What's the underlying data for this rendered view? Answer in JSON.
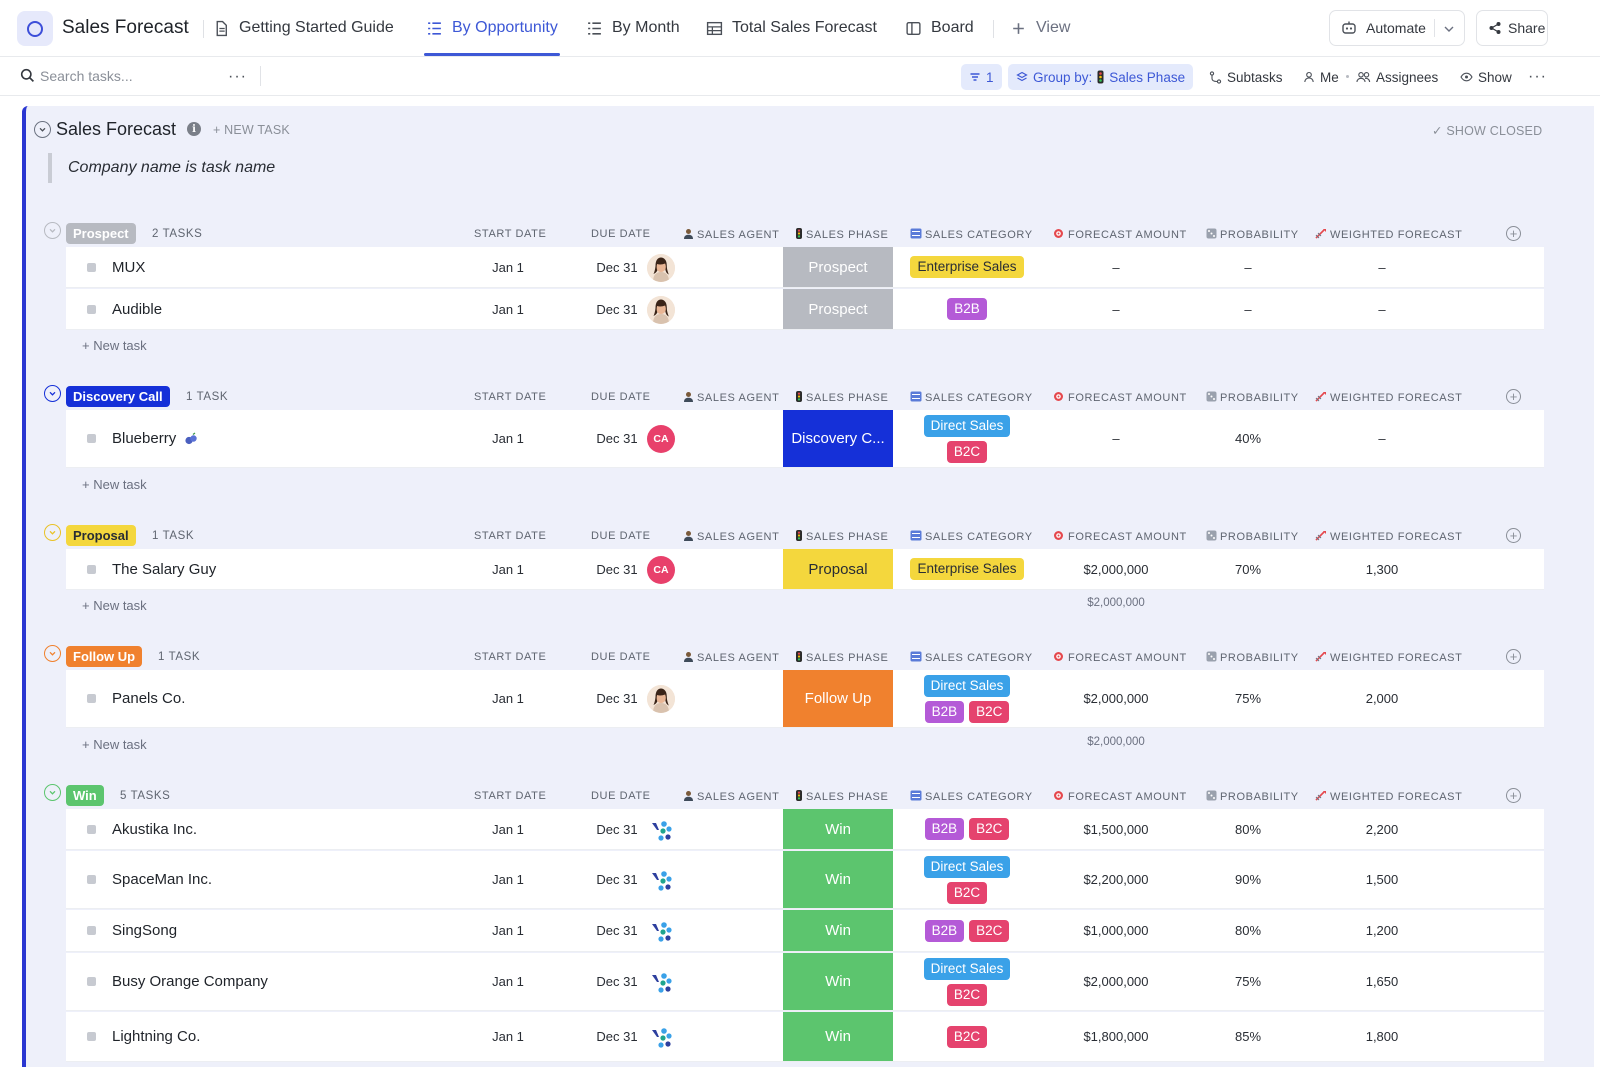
{
  "header": {
    "title": "Sales Forecast",
    "tabs": [
      {
        "label": "Getting Started Guide",
        "icon": "document-icon"
      },
      {
        "label": "By Opportunity",
        "icon": "list-icon"
      },
      {
        "label": "By Month",
        "icon": "list-icon"
      },
      {
        "label": "Total Sales Forecast",
        "icon": "table-icon"
      },
      {
        "label": "Board",
        "icon": "board-icon"
      },
      {
        "label": "View",
        "icon": "plus-icon"
      }
    ],
    "automate": "Automate",
    "share": "Share"
  },
  "toolbar": {
    "search_placeholder": "Search tasks...",
    "filter_count": "1",
    "group_by_label": "Group by:",
    "group_by_value": "Sales Phase",
    "subtasks": "Subtasks",
    "me": "Me",
    "assignees": "Assignees",
    "show": "Show"
  },
  "list": {
    "title": "Sales Forecast",
    "new_task": "+ NEW TASK",
    "show_closed": "SHOW CLOSED",
    "description": "Company name is task name"
  },
  "columns": {
    "start": "START DATE",
    "due": "DUE DATE",
    "agent": "SALES AGENT",
    "phase": "SALES PHASE",
    "category": "SALES CATEGORY",
    "forecast": "FORECAST AMOUNT",
    "probability": "PROBABILITY",
    "weighted": "WEIGHTED FORECAST"
  },
  "new_task_row": "+ New task",
  "colors": {
    "accent": "#3d58d6",
    "prospect": "#b7bac1",
    "discovery": "#1530d8",
    "proposal": "#f4d73d",
    "follow_up": "#f0812e",
    "win": "#5cc56e"
  },
  "groups": [
    {
      "name": "Prospect",
      "count": "2 TASKS",
      "summary": "",
      "tasks": [
        {
          "name": "MUX",
          "start": "Jan 1",
          "due": "Dec 31",
          "agent": "photo",
          "phase": "Prospect",
          "categories": [
            [
              "Enterprise Sales"
            ]
          ],
          "forecast": "–",
          "probability": "–",
          "weighted": "–"
        },
        {
          "name": "Audible",
          "start": "Jan 1",
          "due": "Dec 31",
          "agent": "photo",
          "phase": "Prospect",
          "categories": [
            [
              "B2B"
            ]
          ],
          "forecast": "–",
          "probability": "–",
          "weighted": "–"
        }
      ]
    },
    {
      "name": "Discovery Call",
      "count": "1 TASK",
      "summary": "",
      "tasks": [
        {
          "name": "Blueberry",
          "start": "Jan 1",
          "due": "Dec 31",
          "agent": "CA",
          "phase": "Discovery C...",
          "categories": [
            [
              "Direct Sales"
            ],
            [
              "B2C"
            ]
          ],
          "forecast": "–",
          "probability": "40%",
          "weighted": "–"
        }
      ]
    },
    {
      "name": "Proposal",
      "count": "1 TASK",
      "summary": "$2,000,000",
      "tasks": [
        {
          "name": "The Salary Guy",
          "start": "Jan 1",
          "due": "Dec 31",
          "agent": "CA",
          "phase": "Proposal",
          "categories": [
            [
              "Enterprise Sales"
            ]
          ],
          "forecast": "$2,000,000",
          "probability": "70%",
          "weighted": "1,300"
        }
      ]
    },
    {
      "name": "Follow Up",
      "count": "1 TASK",
      "summary": "$2,000,000",
      "tasks": [
        {
          "name": "Panels Co.",
          "start": "Jan 1",
          "due": "Dec 31",
          "agent": "photo",
          "phase": "Follow Up",
          "categories": [
            [
              "Direct Sales"
            ],
            [
              "B2B",
              "B2C"
            ]
          ],
          "forecast": "$2,000,000",
          "probability": "75%",
          "weighted": "2,000"
        }
      ]
    },
    {
      "name": "Win",
      "count": "5 TASKS",
      "summary": "",
      "tasks": [
        {
          "name": "Akustika Inc.",
          "start": "Jan 1",
          "due": "Dec 31",
          "agent": "logo",
          "phase": "Win",
          "categories": [
            [
              "B2B",
              "B2C"
            ]
          ],
          "forecast": "$1,500,000",
          "probability": "80%",
          "weighted": "2,200"
        },
        {
          "name": "SpaceMan Inc.",
          "start": "Jan 1",
          "due": "Dec 31",
          "agent": "logo",
          "phase": "Win",
          "categories": [
            [
              "Direct Sales"
            ],
            [
              "B2C"
            ]
          ],
          "forecast": "$2,200,000",
          "probability": "90%",
          "weighted": "1,500"
        },
        {
          "name": "SingSong",
          "start": "Jan 1",
          "due": "Dec 31",
          "agent": "logo",
          "phase": "Win",
          "categories": [
            [
              "B2B",
              "B2C"
            ]
          ],
          "forecast": "$1,000,000",
          "probability": "80%",
          "weighted": "1,200"
        },
        {
          "name": "Busy Orange Company",
          "start": "Jan 1",
          "due": "Dec 31",
          "agent": "logo",
          "phase": "Win",
          "categories": [
            [
              "Direct Sales"
            ],
            [
              "B2C"
            ]
          ],
          "forecast": "$2,000,000",
          "probability": "75%",
          "weighted": "1,650"
        },
        {
          "name": "Lightning Co.",
          "start": "Jan 1",
          "due": "Dec 31",
          "agent": "logo",
          "phase": "Win",
          "categories": [
            [
              "B2C"
            ]
          ],
          "forecast": "$1,800,000",
          "probability": "85%",
          "weighted": "1,800"
        }
      ]
    }
  ]
}
